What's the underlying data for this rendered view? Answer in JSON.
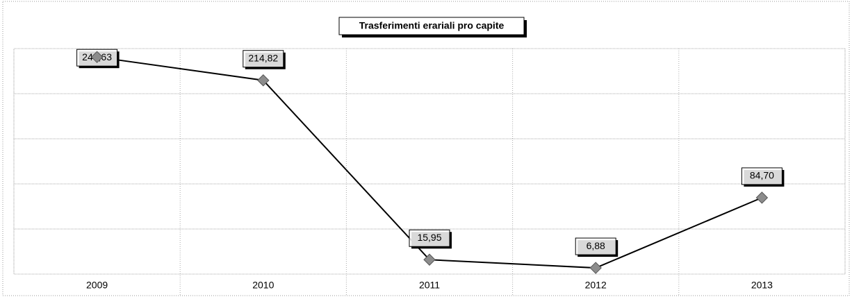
{
  "chart_data": {
    "type": "line",
    "title": "Trasferimenti erariali pro capite",
    "categories": [
      "2009",
      "2010",
      "2011",
      "2012",
      "2013"
    ],
    "series": [
      {
        "name": "Trasferimenti erariali pro capite",
        "color": "#000000",
        "values": [
          240.63,
          214.82,
          15.95,
          6.88,
          84.7
        ],
        "value_labels": [
          "240,63",
          "214,82",
          "15,95",
          "6,88",
          "84,70"
        ],
        "marker_color": "#8c8c8c"
      }
    ],
    "ylim": [
      0,
      250
    ],
    "yticks": [
      0,
      50,
      100,
      150,
      200,
      250
    ],
    "grid": true
  }
}
